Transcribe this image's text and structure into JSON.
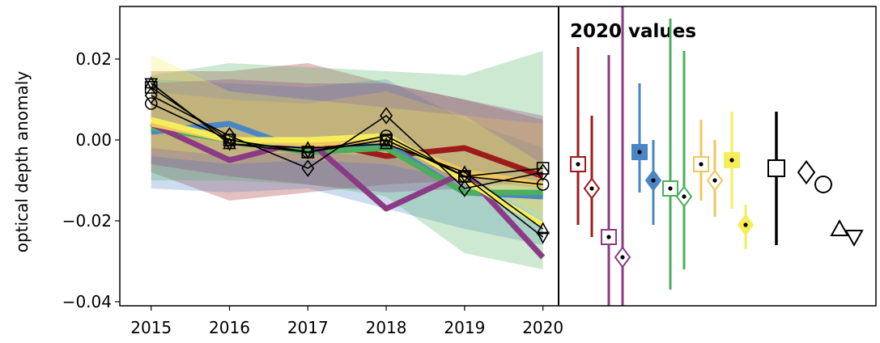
{
  "chart_data": [
    {
      "type": "line",
      "title": "",
      "xlabel": "",
      "ylabel": "optical depth anomaly",
      "x": [
        2015,
        2016,
        2017,
        2018,
        2019,
        2020
      ],
      "x_tick_labels": [
        "2015",
        "2016",
        "2017",
        "2018",
        "2019",
        "2020"
      ],
      "y_ticks": [
        -0.04,
        -0.02,
        0.0,
        0.02
      ],
      "y_tick_labels": [
        "−0.04",
        "−0.02",
        "0.00",
        "0.02"
      ],
      "ylim": [
        -0.041,
        0.033
      ],
      "grid": false,
      "bands": [
        {
          "color": "#9e1b1b",
          "lower": [
            -0.008,
            -0.015,
            -0.013,
            -0.011,
            -0.01,
            -0.012
          ],
          "upper": [
            0.017,
            0.017,
            0.019,
            0.014,
            0.01,
            0.005
          ]
        },
        {
          "color": "#4a86c5",
          "lower": [
            -0.012,
            -0.013,
            -0.012,
            -0.017,
            -0.022,
            -0.026
          ],
          "upper": [
            0.015,
            0.014,
            0.013,
            0.015,
            0.005,
            -0.002
          ]
        },
        {
          "color": "#4caf5c",
          "lower": [
            -0.01,
            -0.01,
            -0.011,
            -0.014,
            -0.028,
            -0.032
          ],
          "upper": [
            0.016,
            0.019,
            0.018,
            0.017,
            0.016,
            0.022
          ]
        },
        {
          "color": "#8b3a86",
          "lower": [
            -0.006,
            -0.009,
            -0.011,
            -0.013,
            -0.012,
            -0.01
          ],
          "upper": [
            0.014,
            0.015,
            0.014,
            0.014,
            0.01,
            0.006
          ]
        },
        {
          "color": "#f0c75e",
          "lower": [
            -0.004,
            -0.006,
            -0.005,
            -0.006,
            -0.01,
            -0.018
          ],
          "upper": [
            0.012,
            0.01,
            0.009,
            0.012,
            0.006,
            0.004
          ]
        },
        {
          "color": "#f5ee5a",
          "lower": [
            -0.002,
            -0.004,
            -0.003,
            -0.004,
            -0.008,
            -0.02
          ],
          "upper": [
            0.021,
            0.012,
            0.01,
            0.008,
            0.006,
            -0.006
          ]
        }
      ],
      "series": [
        {
          "color": "#9e1b1b",
          "values": [
            0.004,
            0.0,
            0.0,
            -0.004,
            -0.002,
            -0.009
          ]
        },
        {
          "color": "#4a86c5",
          "values": [
            0.002,
            0.004,
            -0.003,
            -0.001,
            -0.013,
            -0.014
          ]
        },
        {
          "color": "#4caf5c",
          "values": [
            0.003,
            0.0,
            -0.003,
            -0.002,
            -0.013,
            -0.013
          ]
        },
        {
          "color": "#8b3a86",
          "values": [
            0.004,
            -0.005,
            0.0,
            -0.017,
            -0.008,
            -0.029
          ]
        },
        {
          "color": "#f0c75e",
          "values": [
            0.004,
            0.0,
            -0.001,
            0.0,
            -0.008,
            -0.011
          ]
        },
        {
          "color": "#f5ee5a",
          "values": [
            0.005,
            0.0,
            0.0,
            0.001,
            -0.01,
            -0.021
          ]
        }
      ],
      "marker_series": [
        {
          "marker": "square",
          "values": [
            0.013,
            0.0,
            -0.003,
            0.0,
            -0.009,
            -0.007
          ]
        },
        {
          "marker": "circle",
          "values": [
            0.009,
            0.0,
            -0.003,
            0.001,
            -0.009,
            -0.011
          ]
        },
        {
          "marker": "diamond",
          "values": [
            0.011,
            0.001,
            -0.007,
            0.006,
            -0.012,
            -0.008
          ]
        },
        {
          "marker": "triangle-up",
          "values": [
            0.014,
            -0.001,
            -0.002,
            -0.001,
            -0.008,
            -0.022
          ]
        },
        {
          "marker": "triangle-down",
          "values": [
            0.014,
            -0.001,
            -0.003,
            0.0,
            -0.009,
            -0.024
          ]
        }
      ]
    },
    {
      "type": "scatter",
      "title": "2020 values",
      "ylim": [
        -0.041,
        0.033
      ],
      "groups": [
        {
          "color": "#9e1b1b",
          "items": [
            {
              "marker": "square",
              "filled": false,
              "value": -0.006,
              "low": -0.021,
              "high": 0.023
            },
            {
              "marker": "diamond",
              "filled": false,
              "value": -0.012,
              "low": -0.024,
              "high": 0.006
            }
          ]
        },
        {
          "color": "#8b3a86",
          "items": [
            {
              "marker": "square",
              "filled": false,
              "value": -0.024,
              "low": -0.042,
              "high": 0.021
            },
            {
              "marker": "diamond",
              "filled": false,
              "value": -0.029,
              "low": -0.042,
              "high": 0.033
            }
          ]
        },
        {
          "color": "#4a86c5",
          "items": [
            {
              "marker": "square",
              "filled": true,
              "value": -0.003,
              "low": -0.013,
              "high": 0.014
            },
            {
              "marker": "diamond",
              "filled": true,
              "value": -0.01,
              "low": -0.021,
              "high": 0.0
            }
          ]
        },
        {
          "color": "#4caf5c",
          "items": [
            {
              "marker": "square",
              "filled": false,
              "value": -0.012,
              "low": -0.037,
              "high": 0.03
            },
            {
              "marker": "diamond",
              "filled": false,
              "value": -0.014,
              "low": -0.032,
              "high": 0.022
            }
          ]
        },
        {
          "color": "#f0c75e",
          "items": [
            {
              "marker": "square",
              "filled": false,
              "value": -0.006,
              "low": -0.015,
              "high": 0.005
            },
            {
              "marker": "diamond",
              "filled": false,
              "value": -0.01,
              "low": -0.019,
              "high": 0.0
            }
          ]
        },
        {
          "color": "#f5ee5a",
          "items": [
            {
              "marker": "square",
              "filled": true,
              "value": -0.005,
              "low": -0.017,
              "high": 0.007
            },
            {
              "marker": "diamond",
              "filled": true,
              "value": -0.021,
              "low": -0.027,
              "high": -0.016
            }
          ]
        }
      ],
      "black_marker": {
        "marker": "square",
        "value": -0.007,
        "low": -0.026,
        "high": 0.007
      },
      "open_markers": [
        {
          "marker": "diamond",
          "value": -0.008
        },
        {
          "marker": "circle",
          "value": -0.011
        },
        {
          "marker": "triangle-up",
          "value": -0.022
        },
        {
          "marker": "triangle-down",
          "value": -0.024
        }
      ]
    }
  ]
}
